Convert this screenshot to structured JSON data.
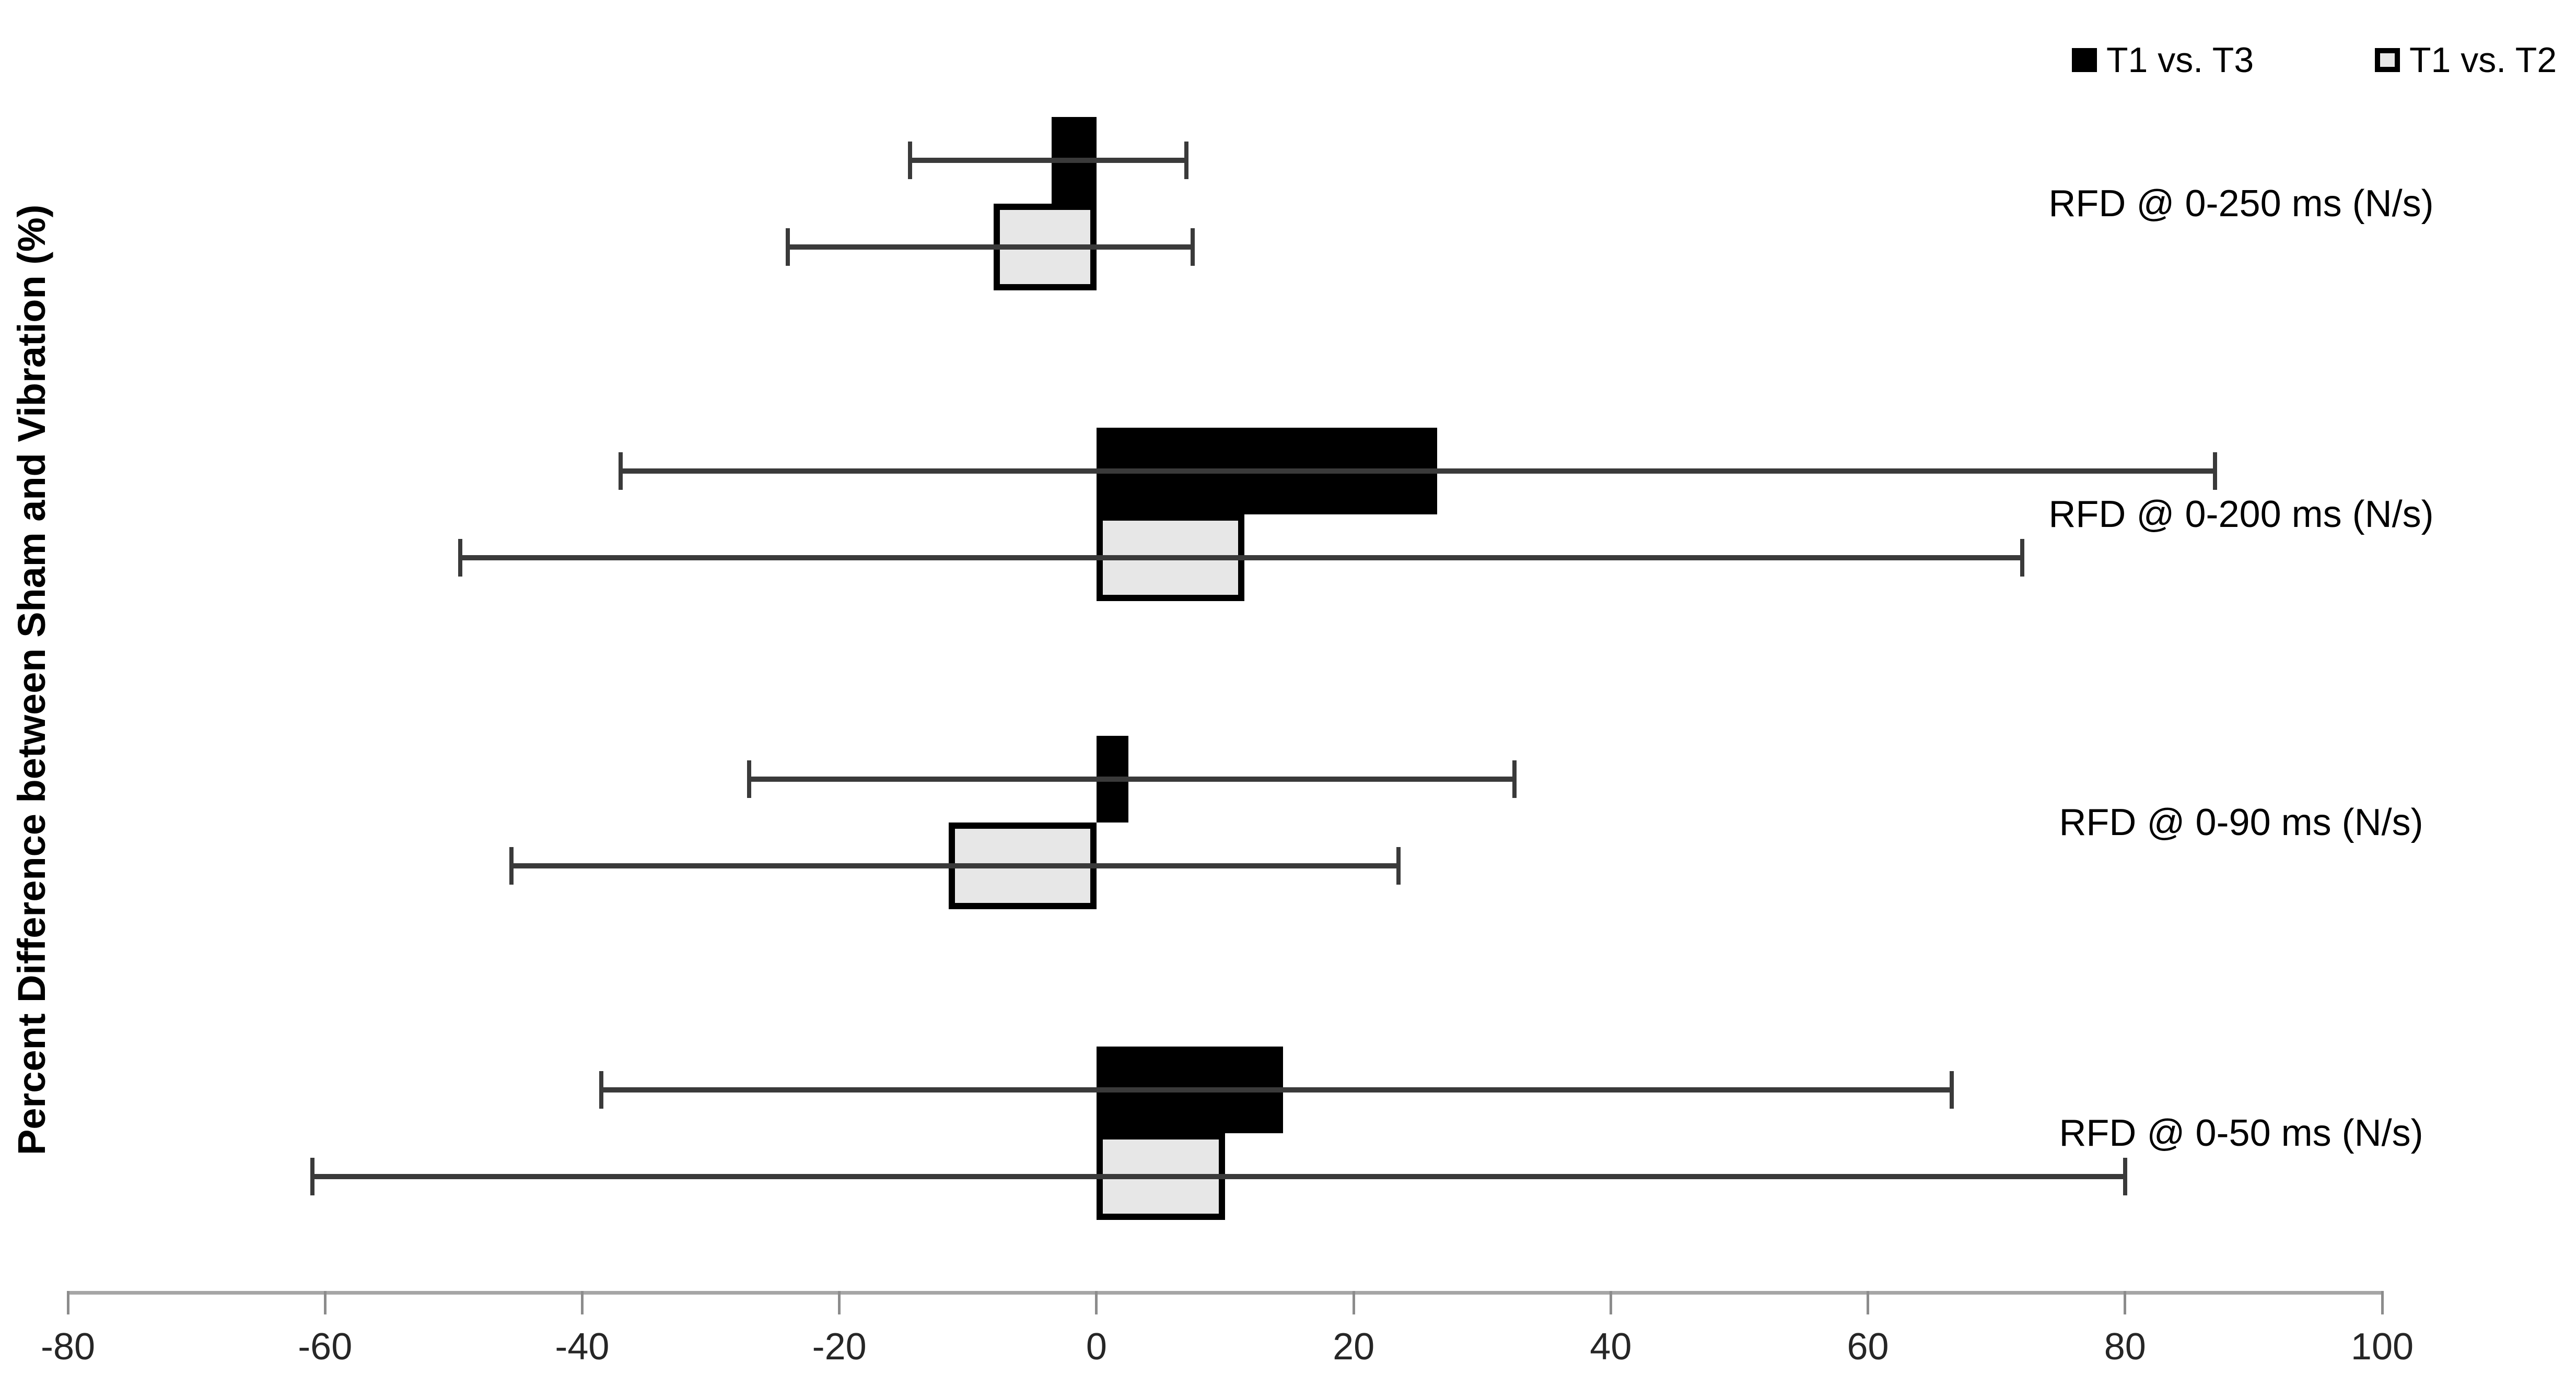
{
  "chart_data": {
    "type": "bar",
    "orientation": "horizontal",
    "title": "",
    "ylabel": "Percent Difference between Sham and Vibration (%)",
    "xlabel": "",
    "xlim": [
      -80,
      100
    ],
    "xticks": [
      -80,
      -60,
      -40,
      -20,
      0,
      20,
      40,
      60,
      80,
      100
    ],
    "grid": false,
    "legend_position": "top-right",
    "categories_top_to_bottom": [
      "RFD @ 0-250 ms (N/s)",
      "RFD @ 0-200 ms (N/s)",
      "RFD @ 0-90 ms (N/s)",
      "RFD @ 0-50 ms (N/s)"
    ],
    "series": [
      {
        "name": "T1 vs. T3",
        "color": "#000000",
        "border_color": "#000000",
        "values": [
          -3.5,
          26.5,
          2.5,
          14.5
        ],
        "error_low": [
          -14.5,
          -37,
          -27,
          -38.5
        ],
        "error_high": [
          7,
          87,
          32.5,
          66.5
        ]
      },
      {
        "name": "T1 vs. T2",
        "color": "#e7e7e7",
        "border_color": "#000000",
        "values": [
          -8,
          11.5,
          -11.5,
          10
        ],
        "error_low": [
          -24,
          -49.5,
          -45.5,
          -61
        ],
        "error_high": [
          7.5,
          72,
          23.5,
          80
        ]
      }
    ],
    "style": {
      "error_bar_color": "#3a3a3a",
      "axis_line_color": "#a6a6a6",
      "tick_color": "#8c8c8c",
      "tick_label_color": "#262626",
      "background": "#ffffff"
    }
  }
}
